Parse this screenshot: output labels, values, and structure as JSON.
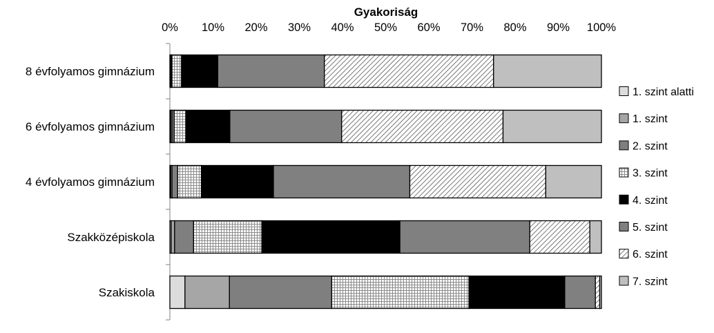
{
  "chart_data": {
    "type": "bar",
    "orientation": "horizontal",
    "stacked": "percent",
    "title": "",
    "xlabel": "Gyakoriság",
    "ylabel": "",
    "xlim": [
      0,
      100
    ],
    "x_tick_labels": [
      "0%",
      "10%",
      "20%",
      "30%",
      "40%",
      "50%",
      "60%",
      "70%",
      "80%",
      "90%",
      "100%"
    ],
    "x_ticks": [
      0,
      10,
      20,
      30,
      40,
      50,
      60,
      70,
      80,
      90,
      100
    ],
    "categories": [
      "8 évfolyamos gimnázium",
      "6 évfolyamos gimnázium",
      "4 évfolyamos gimnázium",
      "Szakközépiskola",
      "Szakiskola"
    ],
    "legend_position": "right",
    "series": [
      {
        "name": "1. szint alatti",
        "values": [
          0.2,
          0.2,
          0.2,
          0.3,
          3.5
        ],
        "color": "#dcdcdc",
        "pattern": "solid"
      },
      {
        "name": "1. szint",
        "values": [
          0.1,
          0.3,
          0.3,
          0.8,
          10.3
        ],
        "color": "#a6a6a6",
        "pattern": "solid"
      },
      {
        "name": "2. szint",
        "values": [
          0.2,
          0.5,
          1.3,
          4.4,
          23.7
        ],
        "color": "#7f7f7f",
        "pattern": "solid"
      },
      {
        "name": "3. szint",
        "values": [
          2.2,
          2.7,
          5.5,
          15.8,
          31.8
        ],
        "color": "#ffffff",
        "pattern": "grid"
      },
      {
        "name": "4. szint",
        "values": [
          8.4,
          10.2,
          16.7,
          32.0,
          22.2
        ],
        "color": "#000000",
        "pattern": "solid"
      },
      {
        "name": "5. szint",
        "values": [
          24.7,
          25.9,
          31.6,
          30.1,
          7.1
        ],
        "color": "#808080",
        "pattern": "solid"
      },
      {
        "name": "6. szint",
        "values": [
          39.2,
          37.4,
          31.5,
          13.9,
          1.0
        ],
        "color": "#ffffff",
        "pattern": "diagonal"
      },
      {
        "name": "7. szint",
        "values": [
          25.0,
          22.8,
          12.9,
          2.7,
          0.4
        ],
        "color": "#bfbfbf",
        "pattern": "solid"
      }
    ]
  }
}
